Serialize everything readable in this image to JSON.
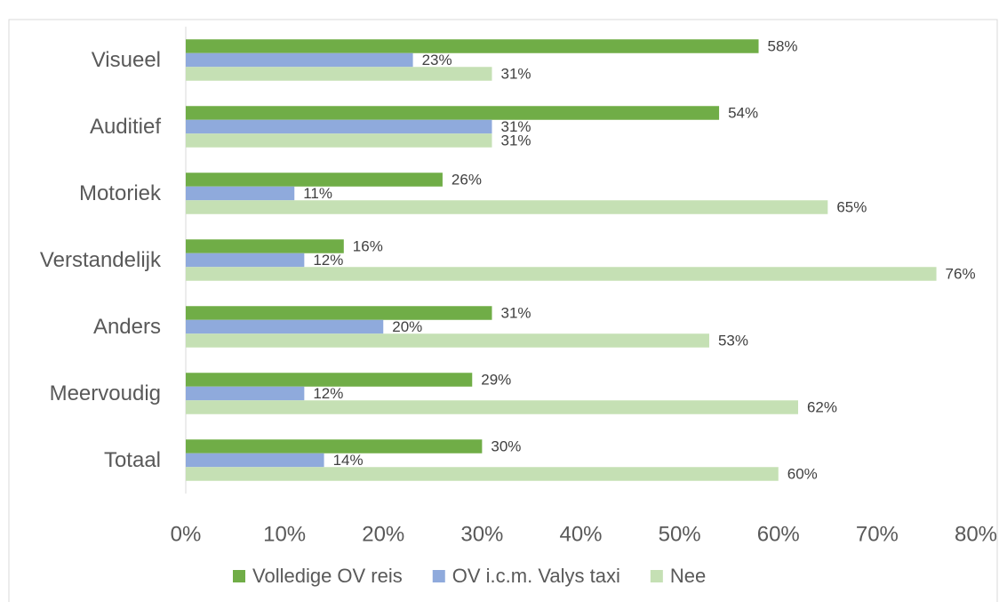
{
  "chart_data": {
    "type": "hbar",
    "categories": [
      "Visueel",
      "Auditief",
      "Motoriek",
      "Verstandelijk",
      "Anders",
      "Meervoudig",
      "Totaal"
    ],
    "series": [
      {
        "name": "Volledige OV reis",
        "color": "#70ad47",
        "values": [
          58,
          54,
          26,
          16,
          31,
          29,
          30
        ],
        "value_labels": [
          "58%",
          "54%",
          "26%",
          "16%",
          "31%",
          "29%",
          "30%"
        ]
      },
      {
        "name": "OV i.c.m. Valys taxi",
        "color": "#8faadc",
        "values": [
          23,
          31,
          11,
          12,
          20,
          12,
          14
        ],
        "value_labels": [
          "23%",
          "31%",
          "11%",
          "12%",
          "20%",
          "12%",
          "14%"
        ]
      },
      {
        "name": "Nee",
        "color": "#c5e0b4",
        "values": [
          31,
          31,
          65,
          76,
          53,
          62,
          60
        ],
        "value_labels": [
          "31%",
          "31%",
          "65%",
          "76%",
          "53%",
          "62%",
          "60%"
        ]
      }
    ],
    "xlim": [
      0,
      80
    ],
    "xticks": [
      {
        "value": 0,
        "label": "0%"
      },
      {
        "value": 10,
        "label": "10%"
      },
      {
        "value": 20,
        "label": "20%"
      },
      {
        "value": 30,
        "label": "30%"
      },
      {
        "value": 40,
        "label": "40%"
      },
      {
        "value": 50,
        "label": "50%"
      },
      {
        "value": 60,
        "label": "60%"
      },
      {
        "value": 70,
        "label": "70%"
      },
      {
        "value": 80,
        "label": "80%"
      }
    ],
    "legend": "bottom"
  }
}
